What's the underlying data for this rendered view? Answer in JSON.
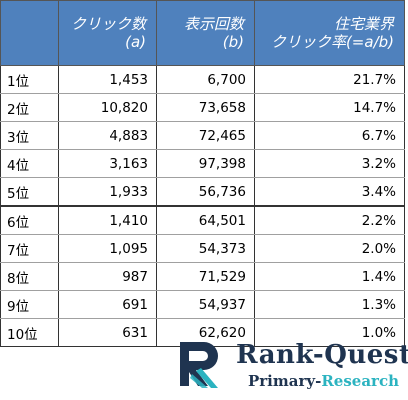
{
  "table": {
    "headers": {
      "corner": "",
      "clicks_line1": "クリック数",
      "clicks_line2": "(a)",
      "impressions_line1": "表示回数",
      "impressions_line2": "(b)",
      "ctr_line1": "住宅業界",
      "ctr_line2": "クリック率(=a/b)"
    },
    "rows": [
      {
        "rank": "1位",
        "clicks": "1,453",
        "impressions": "6,700",
        "ctr": "21.7%"
      },
      {
        "rank": "2位",
        "clicks": "10,820",
        "impressions": "73,658",
        "ctr": "14.7%"
      },
      {
        "rank": "3位",
        "clicks": "4,883",
        "impressions": "72,465",
        "ctr": "6.7%"
      },
      {
        "rank": "4位",
        "clicks": "3,163",
        "impressions": "97,398",
        "ctr": "3.2%"
      },
      {
        "rank": "5位",
        "clicks": "1,933",
        "impressions": "56,736",
        "ctr": "3.4%"
      },
      {
        "rank": "6位",
        "clicks": "1,410",
        "impressions": "64,501",
        "ctr": "2.2%"
      },
      {
        "rank": "7位",
        "clicks": "1,095",
        "impressions": "54,373",
        "ctr": "2.0%"
      },
      {
        "rank": "8位",
        "clicks": "987",
        "impressions": "71,529",
        "ctr": "1.4%"
      },
      {
        "rank": "9位",
        "clicks": "691",
        "impressions": "54,937",
        "ctr": "1.3%"
      },
      {
        "rank": "10位",
        "clicks": "631",
        "impressions": "62,620",
        "ctr": "1.0%"
      }
    ]
  },
  "logo": {
    "title": "Rank-Quest",
    "subtitle_part1": "Primary-",
    "subtitle_part2": "Research",
    "icon": "rq-monogram-icon",
    "colors": {
      "navy": "#1f3450",
      "teal": "#2bb3c0"
    }
  },
  "colors": {
    "header_bg": "#4f81bd",
    "header_text": "#ffffff"
  }
}
